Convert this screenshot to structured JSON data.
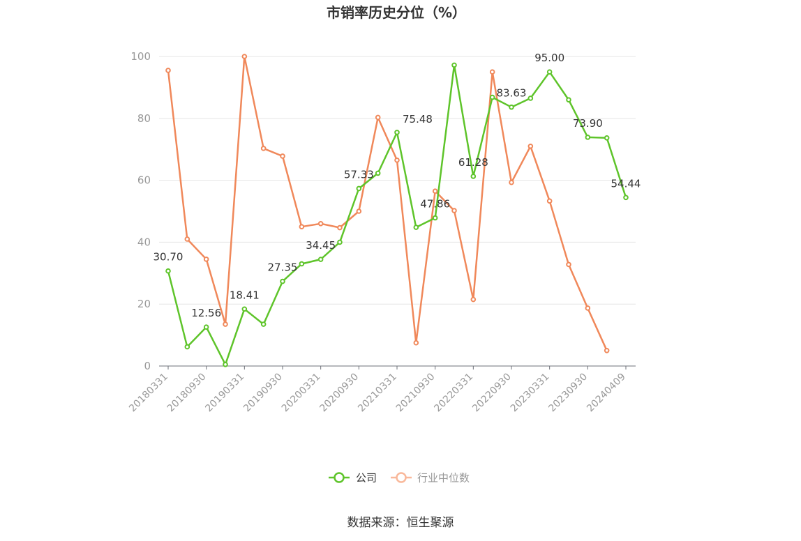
{
  "chart_data": {
    "type": "line",
    "title": "市销率历史分位（%）",
    "source": "数据来源：恒生聚源",
    "ylim": [
      0,
      100
    ],
    "yticks": [
      0,
      20,
      40,
      60,
      80,
      100
    ],
    "x_tick_labels": [
      "20180331",
      "20180930",
      "20190331",
      "20190930",
      "20200331",
      "20200930",
      "20210331",
      "20210930",
      "20220331",
      "20220930",
      "20230331",
      "20230930",
      "20240409"
    ],
    "x": [
      "20180331",
      "20180630",
      "20180930",
      "20181231",
      "20190331",
      "20190630",
      "20190930",
      "20191231",
      "20200331",
      "20200630",
      "20200930",
      "20201231",
      "20210331",
      "20210630",
      "20210930",
      "20211231",
      "20220331",
      "20220630",
      "20220930",
      "20221231",
      "20230331",
      "20230630",
      "20230930",
      "20231231",
      "20240409"
    ],
    "series": [
      {
        "name": "公司",
        "color": "#5ec42a",
        "values": [
          30.7,
          6.2,
          12.56,
          0.5,
          18.41,
          13.5,
          27.35,
          33.0,
          34.45,
          40.0,
          57.33,
          62.3,
          75.48,
          44.8,
          47.86,
          97.2,
          61.28,
          86.8,
          83.63,
          86.5,
          95.0,
          86.0,
          73.9,
          73.7,
          54.44
        ],
        "labels": {
          "0": "30.70",
          "2": "12.56",
          "4": "18.41",
          "6": "27.35",
          "8": "34.45",
          "10": "57.33",
          "12": "75.48",
          "14": "47.86",
          "16": "61.28",
          "18": "83.63",
          "20": "95.00",
          "22": "73.90",
          "24": "54.44"
        }
      },
      {
        "name": "行业中位数",
        "color": "#f0885a",
        "values": [
          95.5,
          41.0,
          34.5,
          13.5,
          100.0,
          70.3,
          67.8,
          45.0,
          46.0,
          44.7,
          50.0,
          80.3,
          66.5,
          7.5,
          56.5,
          50.2,
          21.5,
          95.0,
          59.3,
          71.0,
          53.3,
          32.8,
          18.7,
          5.0,
          null
        ]
      }
    ],
    "legend": {
      "position": "bottom",
      "items": [
        {
          "label": "公司",
          "color": "#5ec42a",
          "text_color": "#333333"
        },
        {
          "label": "行业中位数",
          "color": "#f9b89a",
          "text_color": "#999999"
        }
      ]
    },
    "grid": true
  }
}
